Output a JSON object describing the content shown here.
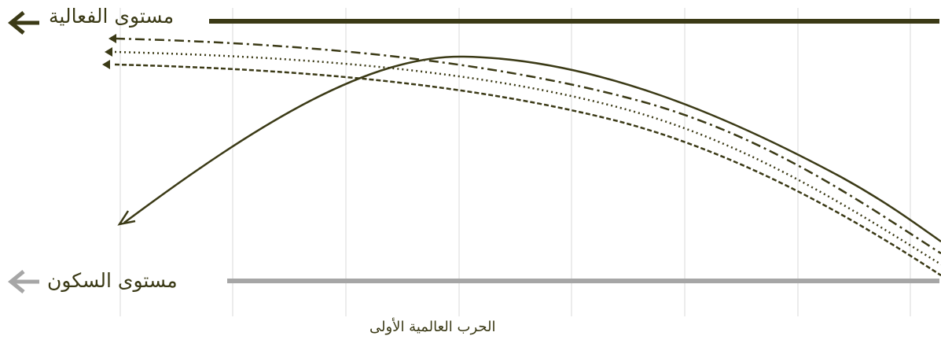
{
  "labels": {
    "activity_level": "مستوى الفعالية",
    "stillness_level": "مستوى السكون",
    "x_caption": "الحرب العالمية الأولى"
  },
  "colors": {
    "primary": "#3b3a16",
    "muted": "#a6a6a6",
    "grid": "#d9d9d9"
  }
}
